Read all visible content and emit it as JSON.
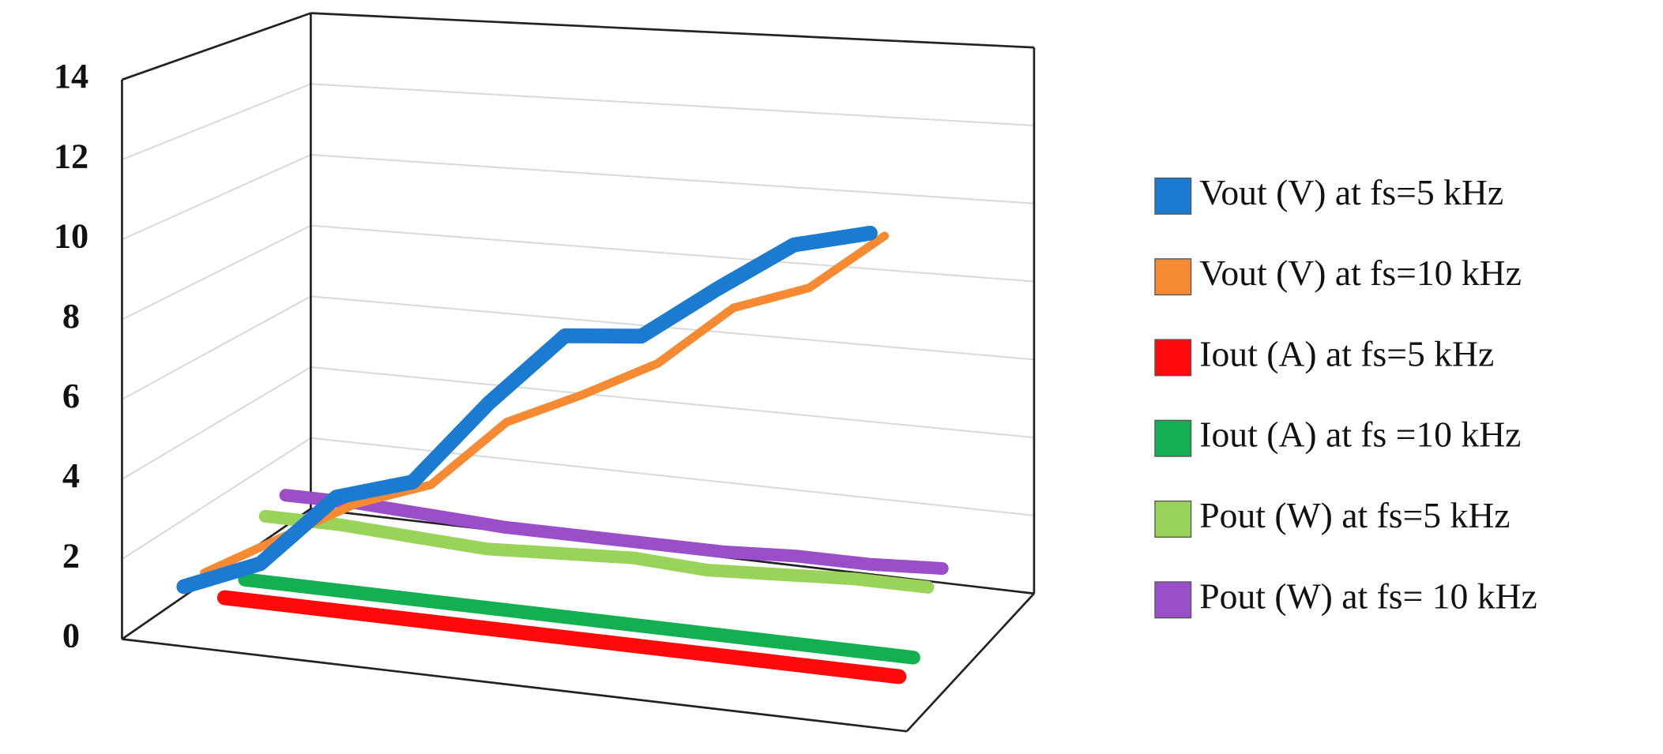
{
  "chart_data": {
    "type": "line",
    "categories": [
      null,
      null,
      null,
      null,
      null,
      null,
      null,
      null,
      null,
      null
    ],
    "series": [
      {
        "name": "Vout (V) at fs=5 kHz",
        "color": "#1a7bd0",
        "values": [
          1.2,
          2.0,
          3.9,
          4.5,
          6.7,
          8.6,
          8.8,
          10.2,
          11.5,
          12.0
        ]
      },
      {
        "name": "Vout (V) at fs=10 kHz",
        "color": "#f58a33",
        "values": [
          1.2,
          2.3,
          3.4,
          4.1,
          5.9,
          6.8,
          7.8,
          9.4,
          10.1,
          11.6
        ]
      },
      {
        "name": "Iout (A) at fs=5 kHz",
        "color": "#ff0a0a",
        "values": [
          0.2,
          0.2,
          0.2,
          0.2,
          0.2,
          0.2,
          0.2,
          0.2,
          0.2,
          0.2
        ]
      },
      {
        "name": "Iout (A) at fs =10 kHz",
        "color": "#12b050",
        "values": [
          0.3,
          0.3,
          0.3,
          0.3,
          0.3,
          0.3,
          0.3,
          0.3,
          0.3,
          0.3
        ]
      },
      {
        "name": "Pout (W) at fs=5 kHz",
        "color": "#9ad35a",
        "values": [
          1.6,
          1.6,
          1.5,
          1.4,
          1.5,
          1.6,
          1.5,
          1.6,
          1.7,
          1.7
        ]
      },
      {
        "name": "Pout (W) at fs= 10 kHz",
        "color": "#9a4fc8",
        "values": [
          1.8,
          1.8,
          1.7,
          1.6,
          1.6,
          1.6,
          1.6,
          1.7,
          1.7,
          1.8
        ]
      }
    ],
    "ylim": [
      0,
      14
    ],
    "yticks": [
      0,
      2,
      4,
      6,
      8,
      10,
      12,
      14
    ],
    "grid": true,
    "legend": "right"
  }
}
